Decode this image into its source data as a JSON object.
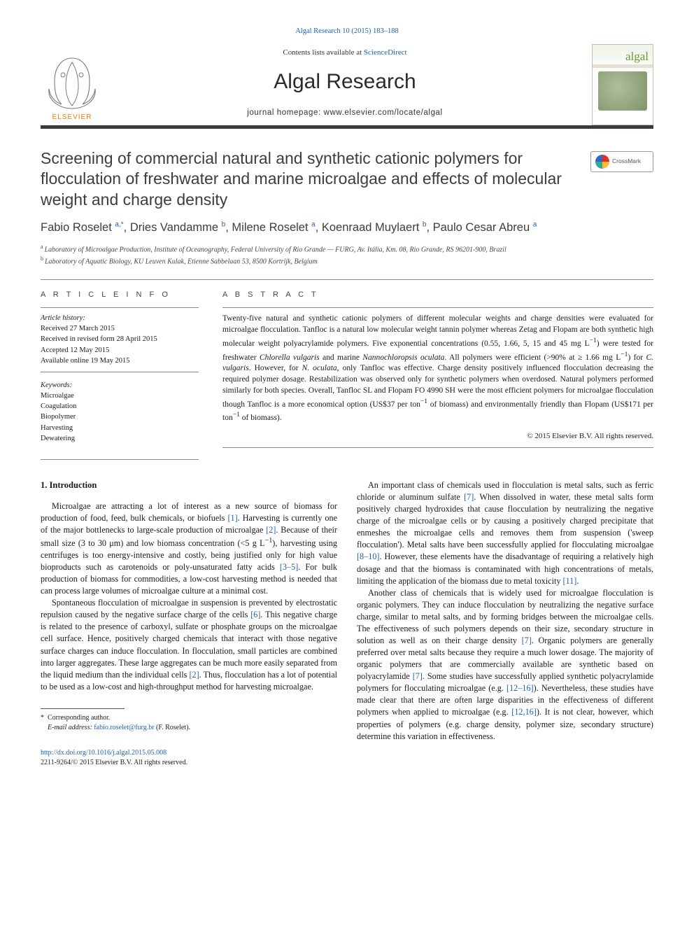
{
  "top_citation": "Algal Research 10 (2015) 183–188",
  "banner": {
    "contents_prefix": "Contents lists available at ",
    "contents_link": "ScienceDirect",
    "journal_title": "Algal Research",
    "homepage_label": "journal homepage: ",
    "homepage_url": "www.elsevier.com/locate/algal",
    "cover_brand": "algal"
  },
  "crossmark_label": "CrossMark",
  "title": "Screening of commercial natural and synthetic cationic polymers for flocculation of freshwater and marine microalgae and effects of molecular weight and charge density",
  "authors": [
    {
      "name": "Fabio Roselet",
      "affs": "a,",
      "star": "*"
    },
    {
      "name": "Dries Vandamme",
      "affs": "b"
    },
    {
      "name": "Milene Roselet",
      "affs": "a"
    },
    {
      "name": "Koenraad Muylaert",
      "affs": "b"
    },
    {
      "name": "Paulo Cesar Abreu",
      "affs": "a"
    }
  ],
  "affiliations": [
    {
      "key": "a",
      "text": "Laboratory of Microalgae Production, Institute of Oceanography, Federal University of Rio Grande — FURG, Av. Itália, Km. 08, Rio Grande, RS 96201-900, Brazil"
    },
    {
      "key": "b",
      "text": "Laboratory of Aquatic Biology, KU Leuven Kulak, Etienne Sabbelaan 53, 8500 Kortrijk, Belgium"
    }
  ],
  "article_info_label": "A R T I C L E   I N F O",
  "abstract_label": "A B S T R A C T",
  "history": {
    "label": "Article history:",
    "received": "Received 27 March 2015",
    "revised": "Received in revised form 28 April 2015",
    "accepted": "Accepted 12 May 2015",
    "online": "Available online 19 May 2015"
  },
  "keywords_label": "Keywords:",
  "keywords": [
    "Microalgae",
    "Coagulation",
    "Biopolymer",
    "Harvesting",
    "Dewatering"
  ],
  "abstract_html": "Twenty-five natural and synthetic cationic polymers of different molecular weights and charge densities were evaluated for microalgae flocculation. Tanfloc is a natural low molecular weight tannin polymer whereas Zetag and Flopam are both synthetic high molecular weight polyacrylamide polymers. Five exponential concentrations (0.55, 1.66, 5, 15 and 45 mg L<sup>−1</sup>) were tested for freshwater <span class=\"ital\">Chlorella vulgaris</span> and marine <span class=\"ital\">Nannochloropsis oculata</span>. All polymers were efficient (>90% at ≥ 1.66 mg L<sup>−1</sup>) for <span class=\"ital\">C. vulgaris</span>. However, for <span class=\"ital\">N. oculata</span>, only Tanfloc was effective. Charge density positively influenced flocculation decreasing the required polymer dosage. Restabilization was observed only for synthetic polymers when overdosed. Natural polymers performed similarly for both species. Overall, Tanfloc SL and Flopam FO 4990 SH were the most efficient polymers for microalgae flocculation though Tanfloc is a more economical option (US$37 per ton<sup>−1</sup> of biomass) and environmentally friendly than Flopam (US$171 per ton<sup>−1</sup> of biomass).",
  "abstract_copyright": "© 2015 Elsevier B.V. All rights reserved.",
  "section_heading": "1. Introduction",
  "paragraphs_left": [
    "Microalgae are attracting a lot of interest as a new source of biomass for production of food, feed, bulk chemicals, or biofuels <a class=\"ref-link\" href=\"#\">[1]</a>. Harvesting is currently one of the major bottlenecks to large-scale production of microalgae <a class=\"ref-link\" href=\"#\">[2]</a>. Because of their small size (3 to 30 μm) and low biomass concentration (<5 g L<sup>−1</sup>), harvesting using centrifuges is too energy-intensive and costly, being justified only for high value bioproducts such as carotenoids or poly-unsaturated fatty acids <a class=\"ref-link\" href=\"#\">[3–5]</a>. For bulk production of biomass for commodities, a low-cost harvesting method is needed that can process large volumes of microalgae culture at a minimal cost.",
    "Spontaneous flocculation of microalgae in suspension is prevented by electrostatic repulsion caused by the negative surface charge of the cells <a class=\"ref-link\" href=\"#\">[6]</a>. This negative charge is related to the presence of carboxyl, sulfate or phosphate groups on the microalgae cell surface. Hence, positively charged chemicals that interact with those negative surface charges can induce flocculation. In flocculation, small particles are combined into larger aggregates. These large aggregates can be much more easily separated from the liquid medium than the individual cells <a class=\"ref-link\" href=\"#\">[2]</a>. Thus, flocculation has a lot of potential to be used as a low-cost and high-throughput method for harvesting microalgae."
  ],
  "paragraphs_right": [
    "An important class of chemicals used in flocculation is metal salts, such as ferric chloride or aluminum sulfate <a class=\"ref-link\" href=\"#\">[7]</a>. When dissolved in water, these metal salts form positively charged hydroxides that cause flocculation by neutralizing the negative charge of the microalgae cells or by causing a positively charged precipitate that enmeshes the microalgae cells and removes them from suspension ('sweep flocculation'). Metal salts have been successfully applied for flocculating microalgae <a class=\"ref-link\" href=\"#\">[8–10]</a>. However, these elements have the disadvantage of requiring a relatively high dosage and that the biomass is contaminated with high concentrations of metals, limiting the application of the biomass due to metal toxicity <a class=\"ref-link\" href=\"#\">[11]</a>.",
    "Another class of chemicals that is widely used for microalgae flocculation is organic polymers. They can induce flocculation by neutralizing the negative surface charge, similar to metal salts, and by forming bridges between the microalgae cells. The effectiveness of such polymers depends on their size, secondary structure in solution as well as on their charge density <a class=\"ref-link\" href=\"#\">[7]</a>. Organic polymers are generally preferred over metal salts because they require a much lower dosage. The majority of organic polymers that are commercially available are synthetic based on polyacrylamide <a class=\"ref-link\" href=\"#\">[7]</a>. Some studies have successfully applied synthetic polyacrylamide polymers for flocculating microalgae (e.g. <a class=\"ref-link\" href=\"#\">[12–16]</a>). Nevertheless, these studies have made clear that there are often large disparities in the effectiveness of different polymers when applied to microalgae (e.g. <a class=\"ref-link\" href=\"#\">[12,16]</a>). It is not clear, however, which properties of polymers (e.g. charge density, polymer size, secondary structure) determine this variation in effectiveness."
  ],
  "footnote": {
    "star": "*",
    "corr_label": "Corresponding author.",
    "email_label": "E-mail address: ",
    "email": "fabio.roselet@furg.br",
    "email_owner": " (F. Roselet)."
  },
  "doi": {
    "url": "http://dx.doi.org/10.1016/j.algal.2015.05.008",
    "issn_line": "2211-9264/© 2015 Elsevier B.V. All rights reserved."
  },
  "colors": {
    "link": "#2060b0",
    "rule": "#888888",
    "banner_rule": "#3a3a3a",
    "text": "#1a1a1a",
    "elsevier_orange": "#ef7b00",
    "elsevier_gray": "#7a7a7a"
  }
}
